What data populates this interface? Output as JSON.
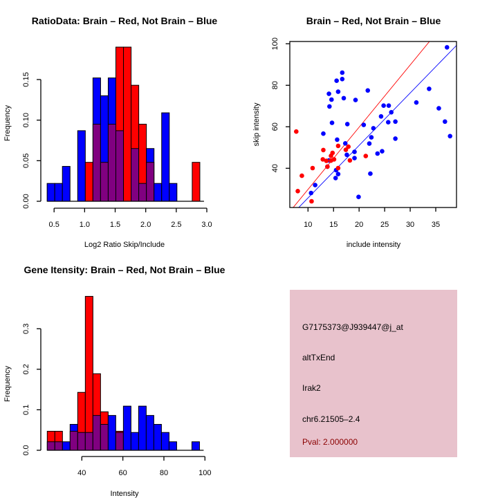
{
  "chart_data": [
    {
      "id": "ratio-hist",
      "type": "bar",
      "title": "RatioData: Brain – Red, Not Brain – Blue",
      "xlabel": "Log2 Ratio Skip/Include",
      "ylabel": "Frequency",
      "xlim": [
        0.386,
        2.886
      ],
      "ylim": [
        0,
        0.19
      ],
      "xticks": [
        0.5,
        1.0,
        1.5,
        2.0,
        2.5,
        3.0
      ],
      "xtick_labels": [
        "0.5",
        "1.0",
        "1.5",
        "2.0",
        "2.5",
        "3.0"
      ],
      "yticks": [
        0,
        0.05,
        0.1,
        0.15
      ],
      "ytick_labels": [
        "0.00",
        "0.05",
        "0.10",
        "0.15"
      ],
      "bin_start": 0.386,
      "bin_width": 0.125,
      "series": [
        {
          "name": "Not Brain",
          "color": "#0000ff",
          "values": [
            0.022,
            0.022,
            0.043,
            0,
            0.087,
            0,
            0.152,
            0.13,
            0.152,
            0.087,
            0,
            0.065,
            0.022,
            0.065,
            0.022,
            0.109,
            0.022,
            0,
            0,
            0
          ]
        },
        {
          "name": "Brain",
          "color": "#ff0000",
          "values": [
            0,
            0,
            0,
            0,
            0,
            0.048,
            0.095,
            0.048,
            0.095,
            0.19,
            0.19,
            0.143,
            0.095,
            0.048,
            0,
            0,
            0,
            0,
            0,
            0.048
          ]
        }
      ],
      "overlap_color": "#800080"
    },
    {
      "id": "scatter",
      "type": "scatter",
      "title": "Brain – Red, Not Brain – Blue",
      "xlabel": "include intensity",
      "ylabel": "skip intensity",
      "xlim": [
        6.44,
        39.06
      ],
      "ylim": [
        21.1,
        101.1
      ],
      "xticks": [
        10,
        15,
        20,
        25,
        30,
        35
      ],
      "xtick_labels": [
        "10",
        "15",
        "20",
        "25",
        "30",
        "35"
      ],
      "yticks": [
        40,
        60,
        80,
        100
      ],
      "ytick_labels": [
        "40",
        "60",
        "80",
        "100"
      ],
      "series": [
        {
          "name": "Not Brain",
          "color": "#0000ff",
          "x": [
            37.2,
            16.7,
            16.7,
            15.6,
            15.9,
            14.1,
            21.7,
            14.6,
            17.0,
            19.3,
            14.2,
            33.7,
            31.2,
            35.6,
            24.8,
            25.8,
            26.3,
            24.3,
            25.7,
            27.1,
            36.8,
            14.7,
            17.7,
            20.9,
            22.8,
            13.0,
            37.8,
            27.1,
            22.4,
            15.7,
            22.0,
            17.3,
            19.1,
            24.5,
            23.6,
            17.6,
            19.1,
            14.1,
            13.8,
            15.5,
            15.9,
            22.2,
            15.4,
            11.4,
            10.6,
            19.9
          ],
          "y": [
            98.3,
            86.1,
            83.0,
            82.2,
            76.9,
            75.9,
            77.5,
            73.1,
            73.8,
            72.9,
            69.8,
            78.3,
            71.7,
            68.9,
            70.2,
            70.2,
            67.0,
            65.0,
            62.2,
            62.5,
            62.5,
            61.9,
            61.3,
            60.9,
            59.3,
            56.7,
            55.5,
            54.3,
            54.9,
            53.8,
            51.9,
            52.0,
            47.9,
            48.2,
            47.1,
            46.5,
            44.9,
            43.8,
            40.8,
            39.1,
            37.2,
            37.4,
            35.3,
            31.9,
            28.1,
            26.2
          ]
        },
        {
          "name": "Brain",
          "color": "#ff0000",
          "x": [
            7.7,
            15.9,
            17.9,
            13.0,
            17.4,
            14.8,
            14.5,
            21.3,
            12.9,
            15.1,
            18.2,
            14.5,
            13.6,
            13.8,
            15.9,
            10.9,
            8.8,
            8.0,
            10.7
          ],
          "y": [
            57.7,
            50.8,
            50.4,
            48.8,
            48.9,
            47.4,
            46.0,
            45.9,
            44.3,
            44.3,
            43.8,
            43.7,
            43.6,
            40.8,
            40.1,
            40.1,
            36.4,
            29.0,
            24.1
          ]
        }
      ],
      "lines": [
        {
          "name": "Brain fit",
          "color": "#ff0000",
          "slope": 3.0,
          "intercept": -0.2
        },
        {
          "name": "Not Brain fit",
          "color": "#0000ff",
          "slope": 2.53,
          "intercept": 0.4
        }
      ]
    },
    {
      "id": "gene-hist",
      "type": "bar",
      "title": "Gene Itensity: Brain – Red, Not Brain – Blue",
      "xlabel": "Intensity",
      "ylabel": "Frequency",
      "xlim": [
        23.15,
        97.35
      ],
      "ylim": [
        0,
        0.38
      ],
      "xticks": [
        40,
        60,
        80,
        100
      ],
      "xtick_labels": [
        "40",
        "60",
        "80",
        "100"
      ],
      "yticks": [
        0,
        0.1,
        0.2,
        0.3
      ],
      "ytick_labels": [
        "0.0",
        "0.1",
        "0.2",
        "0.3"
      ],
      "bin_start": 23.15,
      "bin_width": 3.71,
      "series": [
        {
          "name": "Not Brain",
          "color": "#0000ff",
          "values": [
            0.021,
            0.021,
            0.021,
            0.064,
            0.044,
            0.044,
            0.086,
            0.064,
            0.086,
            0.044,
            0.109,
            0.044,
            0.109,
            0.086,
            0.064,
            0.044,
            0.021,
            0,
            0,
            0.021
          ]
        },
        {
          "name": "Brain",
          "color": "#ff0000",
          "values": [
            0.047,
            0.047,
            0,
            0.047,
            0.143,
            0.38,
            0.189,
            0.095,
            0,
            0.047,
            0,
            0,
            0,
            0,
            0,
            0,
            0,
            0,
            0,
            0
          ]
        }
      ],
      "overlap_color": "#800080"
    }
  ],
  "info_panel": {
    "probe_id": "G7175373@J939447@j_at",
    "event_type": "altTxEnd",
    "gene": "Irak2",
    "location": "chr6.21505–2.4",
    "pval": "Pval: 2.000000",
    "background_color": "#e8c2cc",
    "pval_color": "#8b0000"
  }
}
